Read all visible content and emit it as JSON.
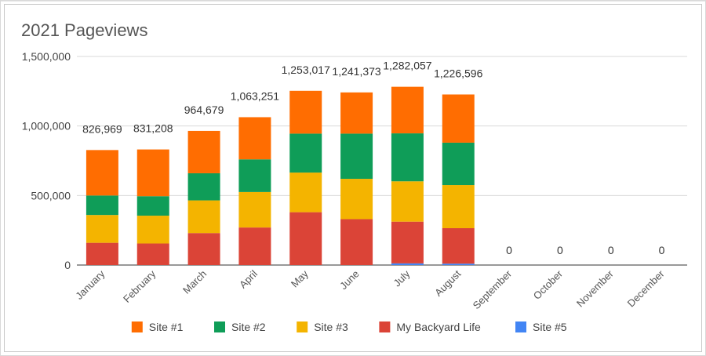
{
  "chart_data": {
    "type": "bar",
    "stacked": true,
    "title": "2021 Pageviews",
    "xlabel": "",
    "ylabel": "",
    "ylim": [
      0,
      1500000
    ],
    "yticks": [
      0,
      500000,
      1000000,
      1500000
    ],
    "ytick_labels": [
      "0",
      "500,000",
      "1,000,000",
      "1,500,000"
    ],
    "categories": [
      "January",
      "February",
      "March",
      "April",
      "May",
      "June",
      "July",
      "August",
      "September",
      "October",
      "November",
      "December"
    ],
    "totals": [
      "826,969",
      "831,208",
      "964,679",
      "1,063,251",
      "1,253,017",
      "1,241,373",
      "1,282,057",
      "1,226,596",
      "0",
      "0",
      "0",
      "0"
    ],
    "series": [
      {
        "name": "Site #5",
        "color": "#4285f4",
        "values": [
          0,
          0,
          0,
          0,
          0,
          0,
          12000,
          10000,
          0,
          0,
          0,
          0
        ]
      },
      {
        "name": "My Backyard Life",
        "color": "#db4437",
        "values": [
          160000,
          155000,
          230000,
          270000,
          380000,
          330000,
          300000,
          255000,
          0,
          0,
          0,
          0
        ]
      },
      {
        "name": "Site #3",
        "color": "#f4b400",
        "values": [
          200000,
          200000,
          235000,
          255000,
          285000,
          290000,
          290000,
          310000,
          0,
          0,
          0,
          0
        ]
      },
      {
        "name": "Site #2",
        "color": "#0f9d58",
        "values": [
          140000,
          140000,
          195000,
          235000,
          280000,
          325000,
          345000,
          305000,
          0,
          0,
          0,
          0
        ]
      },
      {
        "name": "Site #1",
        "color": "#ff6d01",
        "values": [
          326969,
          336208,
          304679,
          303251,
          308017,
          296373,
          335057,
          346596,
          0,
          0,
          0,
          0
        ]
      }
    ],
    "legend": {
      "position": "bottom",
      "order": [
        "Site #1",
        "Site #2",
        "Site #3",
        "My Backyard Life",
        "Site #5"
      ]
    },
    "grid": true
  }
}
